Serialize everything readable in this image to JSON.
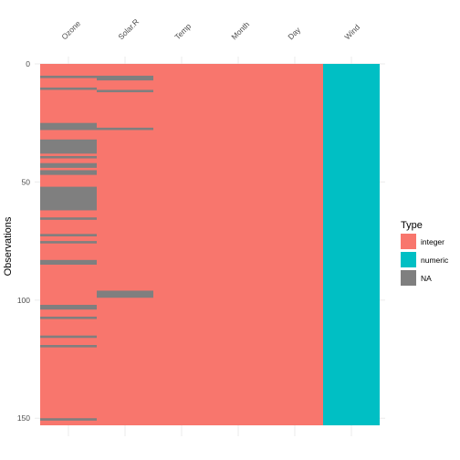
{
  "chart_data": {
    "type": "heatmap",
    "title": "",
    "xlabel": "",
    "ylabel": "Observations",
    "columns": [
      "Ozone",
      "Solar.R",
      "Temp",
      "Month",
      "Day",
      "Wind"
    ],
    "column_types": [
      "integer",
      "integer",
      "integer",
      "integer",
      "integer",
      "numeric"
    ],
    "n_rows": 153,
    "y_ticks": [
      0,
      50,
      100,
      150
    ],
    "y_axis_reversed": true,
    "x_axis_position": "top",
    "grid": true,
    "legend": {
      "title": "Type",
      "position": "right",
      "entries": [
        {
          "label": "integer",
          "color": "#F8766D"
        },
        {
          "label": "numeric",
          "color": "#00BFC4"
        },
        {
          "label": "NA",
          "color": "#7F7F7F"
        }
      ]
    },
    "missing": {
      "Ozone": [
        5,
        10,
        25,
        26,
        27,
        32,
        33,
        34,
        35,
        36,
        37,
        39,
        42,
        43,
        45,
        46,
        52,
        53,
        54,
        55,
        56,
        57,
        58,
        59,
        60,
        61,
        65,
        72,
        75,
        83,
        84,
        102,
        103,
        107,
        115,
        119,
        150
      ],
      "Solar.R": [
        5,
        6,
        11,
        27,
        96,
        97,
        98
      ],
      "Temp": [],
      "Month": [],
      "Day": [],
      "Wind": []
    }
  }
}
